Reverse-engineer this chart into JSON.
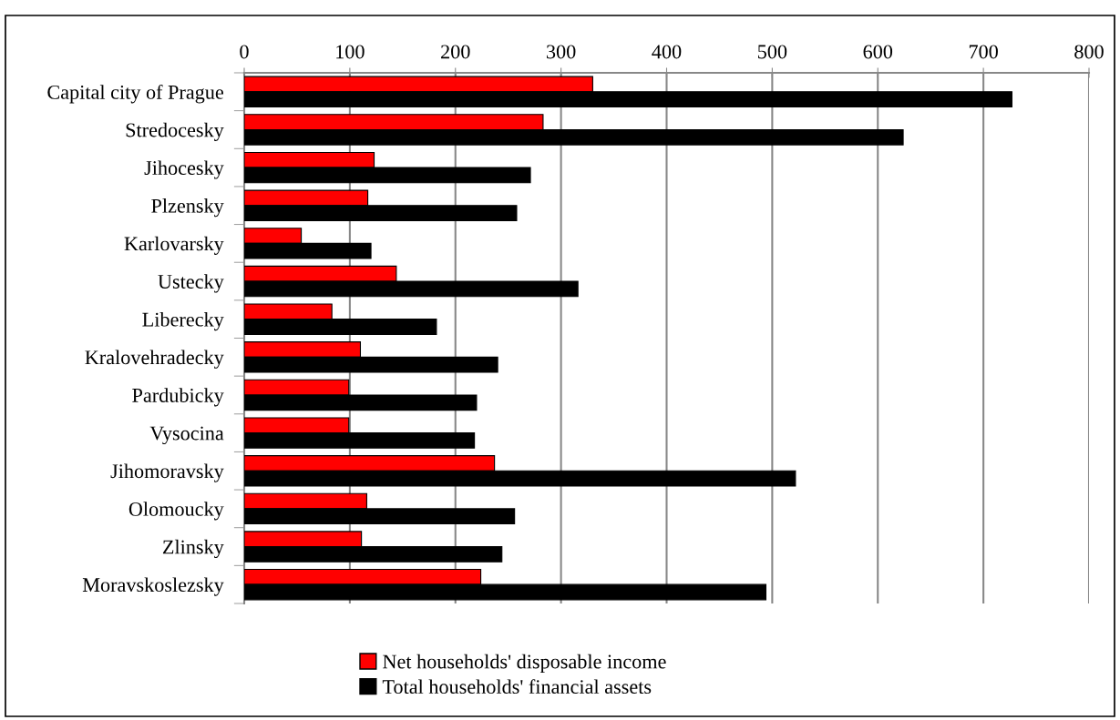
{
  "chart_data": {
    "type": "bar",
    "orientation": "horizontal",
    "categories": [
      "Capital city of Prague",
      "Stredocesky",
      "Jihocesky",
      "Plzensky",
      "Karlovarsky",
      "Ustecky",
      "Liberecky",
      "Kralovehradecky",
      "Pardubicky",
      "Vysocina",
      "Jihomoravsky",
      "Olomoucky",
      "Zlinsky",
      "Moravskoslezsky"
    ],
    "series": [
      {
        "name": "Net households' disposable income",
        "color": "#ff0000",
        "values": [
          330,
          283,
          123,
          117,
          54,
          144,
          83,
          110,
          99,
          99,
          237,
          116,
          111,
          224
        ]
      },
      {
        "name": "Total households' financial assets",
        "color": "#000000",
        "values": [
          727,
          624,
          271,
          258,
          120,
          316,
          182,
          240,
          220,
          218,
          522,
          256,
          244,
          494
        ]
      }
    ],
    "xlim": [
      0,
      800
    ],
    "xticks": [
      0,
      100,
      200,
      300,
      400,
      500,
      600,
      700,
      800
    ],
    "grid": "x",
    "legend": "bottom"
  }
}
